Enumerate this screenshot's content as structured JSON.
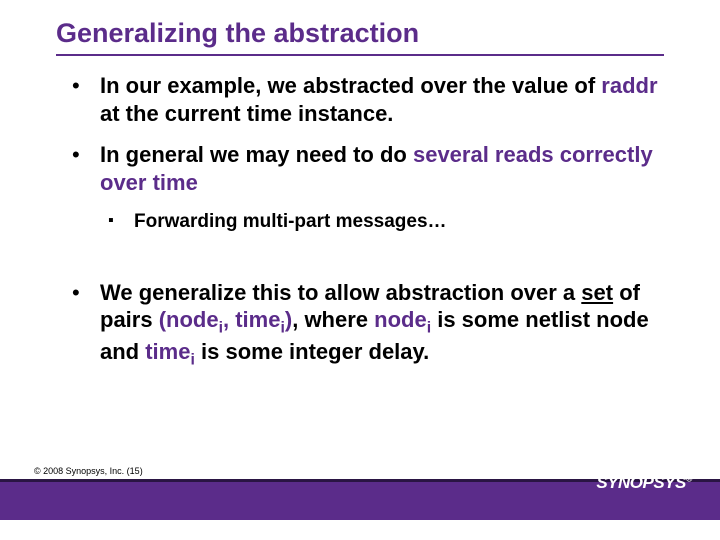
{
  "title": "Generalizing the abstraction",
  "bullets": {
    "b1_pre": "In our example, we abstracted over the value of ",
    "b1_raddr": "raddr",
    "b1_post": " at the current time instance.",
    "b2_pre": "In general we may need to do ",
    "b2_em": "several reads correctly over time",
    "sub1": "Forwarding multi-part messages…",
    "b3_pre": "We generalize this to allow abstraction over a ",
    "b3_set": "set",
    "b3_mid1": " of pairs ",
    "b3_paren_open": "(",
    "b3_node": "node",
    "b3_i": "i",
    "b3_comma": ", ",
    "b3_time": "time",
    "b3_paren_close": ")",
    "b3_where": ", where ",
    "b3_node2": "node",
    "b3_mid2": " is some netlist node and ",
    "b3_time2": "time",
    "b3_end": " is some integer delay."
  },
  "footer": {
    "copyright": "© 2008 Synopsys, Inc. (15)",
    "logo": "SYNOPSYS",
    "reg": "®"
  },
  "colors": {
    "accent": "#5b2c8a",
    "footer_dark": "#2a1543",
    "text": "#000000",
    "bg": "#ffffff"
  }
}
